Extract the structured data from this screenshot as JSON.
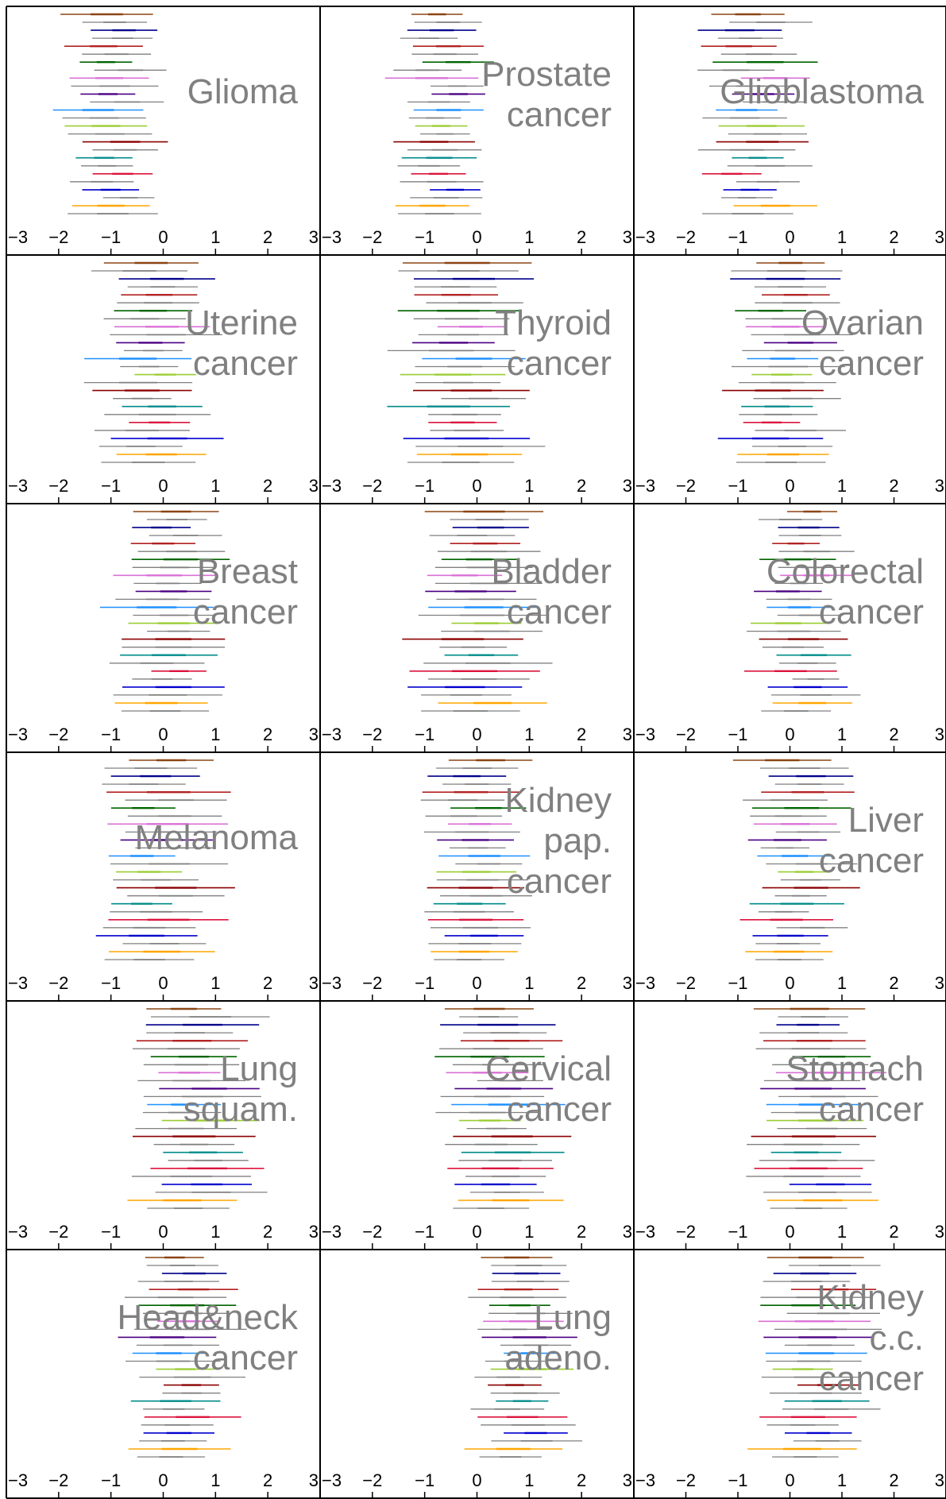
{
  "chart_data": {
    "type": "forest-panels",
    "xlim": [
      -3,
      3
    ],
    "ticks": [
      -3,
      -2,
      -1,
      0,
      1,
      2,
      3
    ],
    "tick_labels": [
      "−3",
      "−2",
      "−1",
      "0",
      "1",
      "2",
      "3"
    ],
    "grid": false,
    "colors": [
      "#8B4513",
      "#00008B",
      "#B22222",
      "#006400",
      "#DA70D6",
      "#4B0082",
      "#1E90FF",
      "#9ACD32",
      "#8B0000",
      "#008B8B",
      "#DC143C",
      "#0000CD",
      "#FFA500"
    ],
    "secondary_color": "#808080",
    "panels": [
      {
        "title": [
          "Glioma"
        ],
        "center": -0.9,
        "spread": 0.35,
        "halfwidth": 0.85
      },
      {
        "title": [
          "Prostate",
          "cancer"
        ],
        "center": -0.65,
        "spread": 0.3,
        "halfwidth": 0.8
      },
      {
        "title": [
          "Glioblastoma"
        ],
        "center": -0.7,
        "spread": 0.45,
        "halfwidth": 0.9
      },
      {
        "title": [
          "Uterine",
          "cancer"
        ],
        "center": -0.2,
        "spread": 0.3,
        "halfwidth": 0.95
      },
      {
        "title": [
          "Thyroid",
          "cancer"
        ],
        "center": -0.2,
        "spread": 0.35,
        "halfwidth": 1.1
      },
      {
        "title": [
          "Ovarian",
          "cancer"
        ],
        "center": -0.05,
        "spread": 0.35,
        "halfwidth": 0.95
      },
      {
        "title": [
          "Breast",
          "cancer"
        ],
        "center": 0.15,
        "spread": 0.3,
        "halfwidth": 0.95
      },
      {
        "title": [
          "Bladder",
          "cancer"
        ],
        "center": 0.0,
        "spread": 0.3,
        "halfwidth": 1.1
      },
      {
        "title": [
          "Colorectal",
          "cancer"
        ],
        "center": 0.25,
        "spread": 0.3,
        "halfwidth": 0.8
      },
      {
        "title": [
          "Melanoma"
        ],
        "center": -0.1,
        "spread": 0.35,
        "halfwidth": 1.05
      },
      {
        "title": [
          "Kidney",
          "pap.",
          "cancer"
        ],
        "center": 0.0,
        "spread": 0.3,
        "halfwidth": 0.85
      },
      {
        "title": [
          "Liver",
          "cancer"
        ],
        "center": 0.15,
        "spread": 0.3,
        "halfwidth": 0.85
      },
      {
        "title": [
          "Lung",
          "squam."
        ],
        "center": 0.65,
        "spread": 0.3,
        "halfwidth": 1.05
      },
      {
        "title": [
          "Cervical",
          "cancer"
        ],
        "center": 0.45,
        "spread": 0.3,
        "halfwidth": 1.0
      },
      {
        "title": [
          "Stomach",
          "cancer"
        ],
        "center": 0.55,
        "spread": 0.3,
        "halfwidth": 1.05
      },
      {
        "title": [
          "Head&neck",
          "cancer"
        ],
        "center": 0.35,
        "spread": 0.3,
        "halfwidth": 0.95
      },
      {
        "title": [
          "Lung",
          "adeno."
        ],
        "center": 0.85,
        "spread": 0.3,
        "halfwidth": 0.9
      },
      {
        "title": [
          "Kidney",
          "c.c.",
          "cancer"
        ],
        "center": 0.55,
        "spread": 0.35,
        "halfwidth": 1.0
      }
    ]
  }
}
